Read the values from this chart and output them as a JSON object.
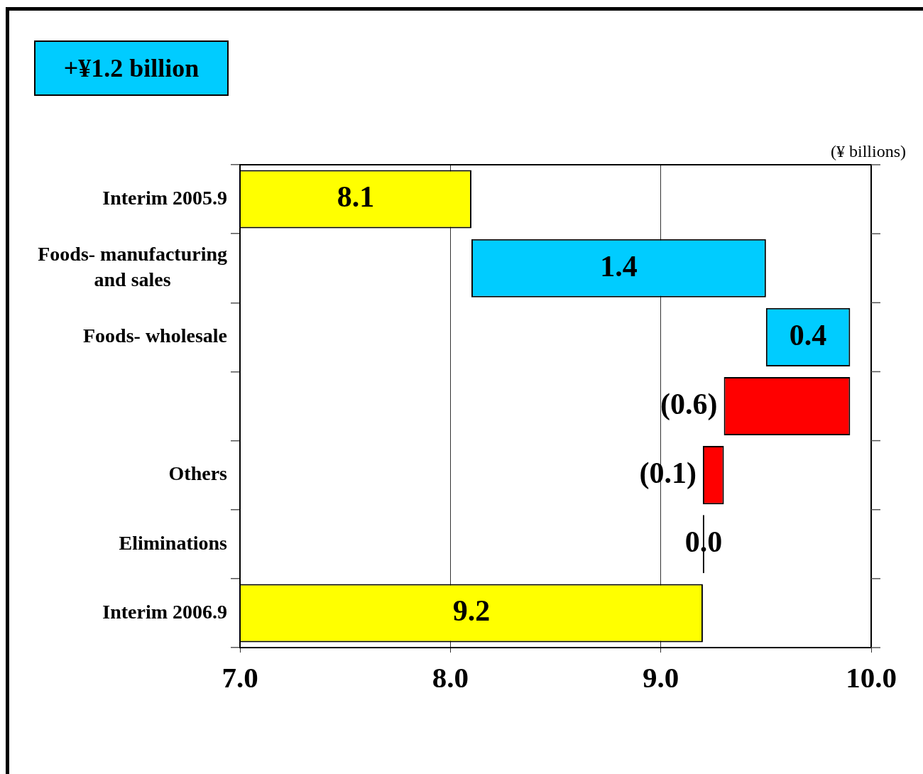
{
  "chart_data": {
    "type": "bar",
    "orientation": "horizontal",
    "categories": [
      "Interim 2005.9",
      "Foods- manufacturing and sales",
      "Foods- wholesale",
      null,
      "Others",
      "Eliminations",
      "Interim 2006.9"
    ],
    "values": [
      8.1,
      1.4,
      0.4,
      -0.6,
      -0.1,
      0.0,
      9.2
    ],
    "base": [
      null,
      8.1,
      9.5,
      9.9,
      9.3,
      9.2,
      null
    ],
    "colors": [
      "#ffff00",
      "#00ccff",
      "#00ccff",
      "#ff0000",
      "#ff0000",
      "#000000",
      "#ffff00"
    ],
    "value_labels": [
      "8.1",
      "1.4",
      "0.4",
      "(0.6)",
      "(0.1)",
      "0.0",
      "9.2"
    ],
    "xlim": [
      7,
      10
    ],
    "xticks": [
      {
        "value": 7,
        "label": "7.0"
      },
      {
        "value": 8,
        "label": "8.0"
      },
      {
        "value": 9,
        "label": "9.0"
      },
      {
        "value": 10,
        "label": "10.0"
      }
    ],
    "grid": "x",
    "xlabel": "(¥ billions)",
    "annotations": [
      "+¥1.2 billion"
    ]
  }
}
